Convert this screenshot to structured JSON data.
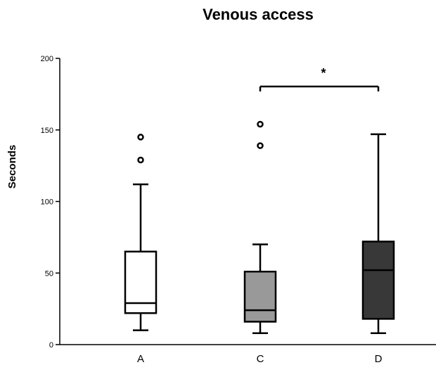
{
  "chart_data": {
    "type": "boxplot",
    "title": "Venous access",
    "ylabel": "Seconds",
    "xlabel": "",
    "ylim": [
      0,
      200
    ],
    "yticks": [
      0,
      50,
      100,
      150,
      200
    ],
    "grid": false,
    "categories": [
      "A",
      "C",
      "D"
    ],
    "boxes": [
      {
        "category": "A",
        "min": 10,
        "q1": 22,
        "median": 29,
        "q3": 65,
        "max": 112,
        "outliers": [
          129,
          145
        ],
        "fill": "#ffffff"
      },
      {
        "category": "C",
        "min": 8,
        "q1": 16,
        "median": 24,
        "q3": 51,
        "max": 70,
        "outliers": [
          139,
          154
        ],
        "fill": "#999999"
      },
      {
        "category": "D",
        "min": 8,
        "q1": 18,
        "median": 52,
        "q3": 72,
        "max": 147,
        "outliers": [],
        "fill": "#383838"
      }
    ],
    "significance": {
      "from": "C",
      "to": "D",
      "label": "*"
    }
  }
}
